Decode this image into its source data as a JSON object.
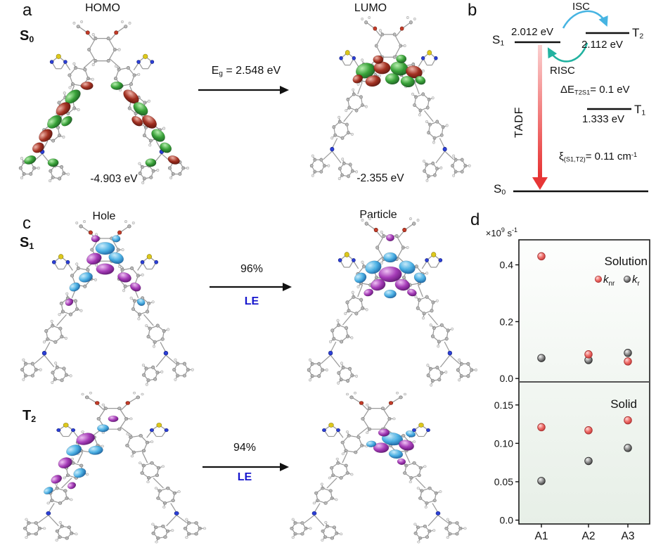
{
  "panel_a": {
    "label": "a",
    "homo_title": "HOMO",
    "lumo_title": "LUMO",
    "state": {
      "base": "S",
      "sub": "0"
    },
    "homo_energy": "-4.903 eV",
    "lumo_energy": "-2.355 eV",
    "gap": {
      "base": "E",
      "sub": "g",
      "rest": " = 2.548 eV"
    }
  },
  "panel_b": {
    "label": "b",
    "isc": "ISC",
    "risc": "RISC",
    "tadf": "TADF",
    "s1": {
      "base": "S",
      "sub": "1",
      "energy": "2.012 eV"
    },
    "t2": {
      "base": "T",
      "sub": "2",
      "energy": "2.112 eV"
    },
    "t1": {
      "base": "T",
      "sub": "1",
      "energy": "1.333 eV"
    },
    "s0": {
      "base": "S",
      "sub": "0"
    },
    "delta_e": {
      "base": "ΔE",
      "sub": "T2S1",
      "rest": "= 0.1 eV"
    },
    "soc": {
      "base": "ξ",
      "sub": "(S1,T2)",
      "rest": "= 0.11 cm",
      "sup": "-1"
    }
  },
  "panel_c": {
    "label": "c",
    "hole_title": "Hole",
    "particle_title": "Particle",
    "rows": [
      {
        "state": {
          "base": "S",
          "sub": "1"
        },
        "percent": "96%",
        "character": "LE"
      },
      {
        "state": {
          "base": "T",
          "sub": "2"
        },
        "percent": "94%",
        "character": "LE"
      }
    ]
  },
  "panel_d": {
    "label": "d"
  },
  "colors": {
    "le_label": "#1515cd",
    "isc_arrow": "#46b4e2",
    "risc_arrow": "#22b2a0",
    "tadf_arrow": "#e84343",
    "homo_lumo_lobes": [
      "#2f9e2f",
      "#a02818"
    ],
    "hole_particle_lobes": [
      "#44aee4",
      "#a233b5"
    ],
    "knr": "#e85f5f",
    "kr": "#8a8a8a"
  },
  "chart_data": {
    "type": "scatter",
    "y_unit": {
      "prefix": "×10",
      "power": "9",
      "unit": " s",
      "unit_sup": "-1"
    },
    "categories": [
      "A1",
      "A2",
      "A3"
    ],
    "legend": [
      {
        "key": "knr",
        "base": "k",
        "sub": "nr",
        "color": "#e85f5f"
      },
      {
        "key": "kr",
        "base": "k",
        "sub": "r",
        "color": "#8a8a8a"
      }
    ],
    "panels": [
      {
        "title": "Solution",
        "ylim": [
          0,
          0.5
        ],
        "yticks": [
          {
            "v": 0.0,
            "label": "0.0"
          },
          {
            "v": 0.2,
            "label": "0.2"
          },
          {
            "v": 0.4,
            "label": "0.4"
          }
        ],
        "series": [
          {
            "name": "knr",
            "values": [
              0.43,
              0.085,
              0.06
            ]
          },
          {
            "name": "kr",
            "values": [
              0.072,
              0.065,
              0.09
            ]
          }
        ]
      },
      {
        "title": "Solid",
        "ylim": [
          0,
          0.18
        ],
        "yticks": [
          {
            "v": 0.0,
            "label": "0.0"
          },
          {
            "v": 0.05,
            "label": "0.05"
          },
          {
            "v": 0.1,
            "label": "0.10"
          },
          {
            "v": 0.15,
            "label": "0.15"
          }
        ],
        "series": [
          {
            "name": "knr",
            "values": [
              0.121,
              0.117,
              0.13
            ]
          },
          {
            "name": "kr",
            "values": [
              0.051,
              0.077,
              0.094
            ]
          }
        ]
      }
    ]
  }
}
